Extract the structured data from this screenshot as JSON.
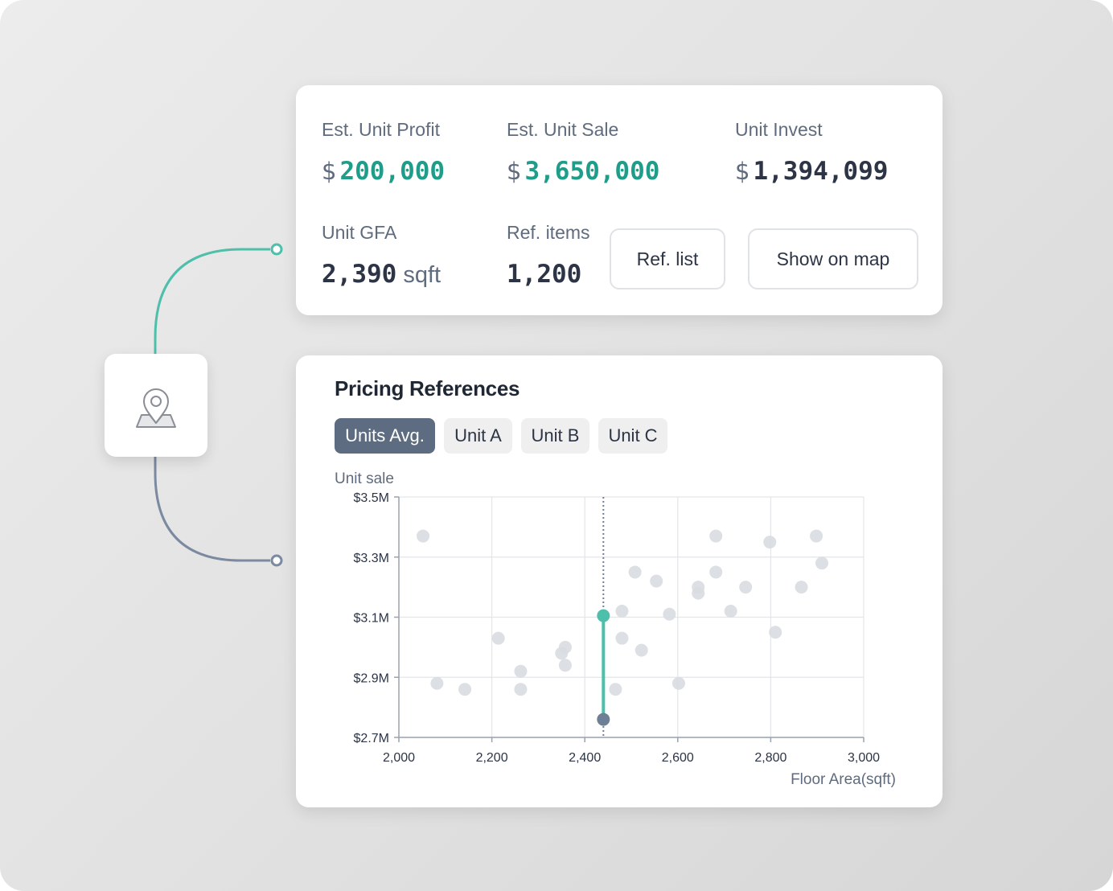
{
  "stats": {
    "profit": {
      "label": "Est. Unit Profit",
      "currency": "$",
      "value": "200,000"
    },
    "sale": {
      "label": "Est. Unit Sale",
      "currency": "$",
      "value": "3,650,000"
    },
    "invest": {
      "label": "Unit Invest",
      "currency": "$",
      "value": "1,394,099"
    },
    "gfa": {
      "label": "Unit GFA",
      "value": "2,390",
      "unit": "sqft"
    },
    "ref_items": {
      "label": "Ref. items",
      "value": "1,200"
    },
    "ref_list_button": "Ref. list",
    "show_map_button": "Show on map"
  },
  "pin_icon": "location-pin-map-icon",
  "pricing": {
    "title": "Pricing References",
    "tabs": [
      {
        "label": "Units Avg.",
        "active": true
      },
      {
        "label": "Unit A",
        "active": false
      },
      {
        "label": "Unit B",
        "active": false
      },
      {
        "label": "Unit C",
        "active": false
      }
    ]
  },
  "colors": {
    "accent": "#4dbfaa",
    "slate": "#6f7f96",
    "scatter": "#d8dbe0",
    "active_tab": "#5d6c80"
  },
  "chart_data": {
    "type": "scatter",
    "ylabel": "Unit sale",
    "xlabel": "Floor Area(sqft)",
    "xlim": [
      2000,
      3000
    ],
    "ylim": [
      2.7,
      3.5
    ],
    "x_ticks": [
      2000,
      2200,
      2400,
      2600,
      2800,
      3000
    ],
    "x_tick_labels": [
      "2,000",
      "2,200",
      "2,400",
      "2,600",
      "2,800",
      "3,000"
    ],
    "y_ticks": [
      2.7,
      2.9,
      3.1,
      3.3,
      3.5
    ],
    "y_tick_labels": [
      "$2.7M",
      "$2.9M",
      "$3.1M",
      "$3.3M",
      "$3.5M"
    ],
    "grid": true,
    "points": [
      [
        2052,
        3.37
      ],
      [
        2082,
        2.88
      ],
      [
        2142,
        2.86
      ],
      [
        2214,
        3.03
      ],
      [
        2262,
        2.92
      ],
      [
        2262,
        2.86
      ],
      [
        2350,
        2.98
      ],
      [
        2358,
        3.0
      ],
      [
        2358,
        2.94
      ],
      [
        2466,
        2.86
      ],
      [
        2480,
        3.12
      ],
      [
        2480,
        3.03
      ],
      [
        2508,
        3.25
      ],
      [
        2522,
        2.99
      ],
      [
        2554,
        3.22
      ],
      [
        2582,
        3.11
      ],
      [
        2602,
        2.88
      ],
      [
        2644,
        3.18
      ],
      [
        2644,
        3.2
      ],
      [
        2682,
        3.37
      ],
      [
        2682,
        3.25
      ],
      [
        2714,
        3.12
      ],
      [
        2746,
        3.2
      ],
      [
        2798,
        3.35
      ],
      [
        2810,
        3.05
      ],
      [
        2866,
        3.2
      ],
      [
        2898,
        3.37
      ],
      [
        2910,
        3.28
      ]
    ],
    "marker": {
      "x": 2440,
      "y_top": 3.105,
      "y_bottom": 2.76
    }
  }
}
